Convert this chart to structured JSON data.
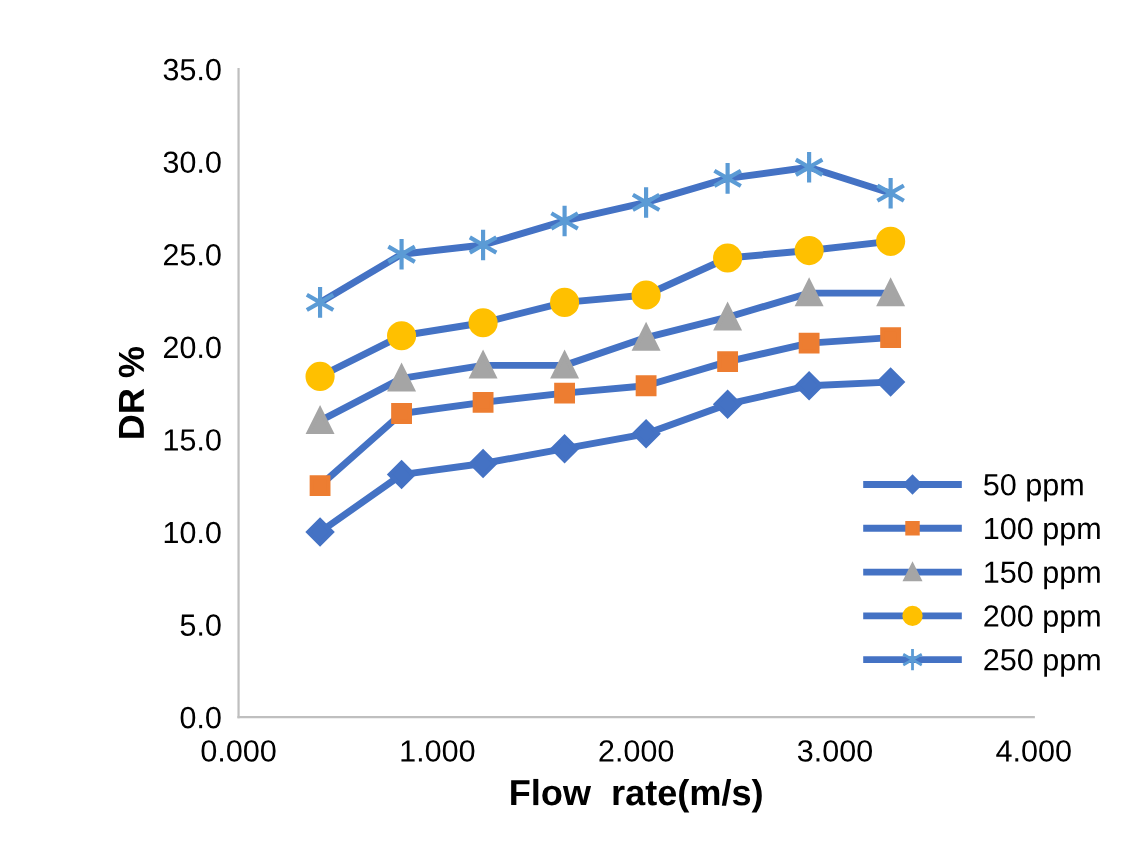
{
  "chart_data": {
    "type": "line",
    "xlabel": "Flow  rate(m/s)",
    "ylabel": "DR %",
    "x": [
      0.41,
      0.82,
      1.23,
      1.64,
      2.05,
      2.46,
      2.87,
      3.28
    ],
    "xlim": [
      0,
      4
    ],
    "xticks": [
      {
        "value": 0,
        "label": "0.000"
      },
      {
        "value": 1,
        "label": "1.000"
      },
      {
        "value": 2,
        "label": "2.000"
      },
      {
        "value": 3,
        "label": "3.000"
      },
      {
        "value": 4,
        "label": "4.000"
      }
    ],
    "ylim": [
      0,
      35
    ],
    "yticks": [
      {
        "value": 0,
        "label": "0.0"
      },
      {
        "value": 5,
        "label": "5.0"
      },
      {
        "value": 10,
        "label": "10.0"
      },
      {
        "value": 15,
        "label": "15.0"
      },
      {
        "value": 20,
        "label": "20.0"
      },
      {
        "value": 25,
        "label": "25.0"
      },
      {
        "value": 30,
        "label": "30.0"
      },
      {
        "value": 35,
        "label": "35.0"
      }
    ],
    "grid": false,
    "legend": "bottom right",
    "line_style": "solid",
    "series": [
      {
        "name": "50 ppm",
        "color": "#4472c4",
        "marker": "diamond",
        "colors": [
          "#4472c4",
          "#4472c4",
          "#4472c4",
          "#4472c4",
          "#4472c4",
          "#4472c4",
          "#4472c4",
          "#4472c4"
        ],
        "values": [
          10.0,
          13.1,
          13.7,
          14.5,
          15.3,
          16.9,
          17.9,
          18.1
        ]
      },
      {
        "name": "100 ppm",
        "color": "#4472c4",
        "marker": "square",
        "colors": [
          "#ed7d31",
          "#ed7d31",
          "#ed7d31",
          "#ed7d31",
          "#ed7d31",
          "#ed7d31",
          "#ed7d31",
          "#ed7d31"
        ],
        "values": [
          12.5,
          16.4,
          17.0,
          17.5,
          17.9,
          19.2,
          20.2,
          20.5
        ]
      },
      {
        "name": "150 ppm",
        "color": "#4472c4",
        "marker": "triangle",
        "colors": [
          "#a5a5a5",
          "#a5a5a5",
          "#a5a5a5",
          "#a5a5a5",
          "#a5a5a5",
          "#a5a5a5",
          "#a5a5a5",
          "#a5a5a5"
        ],
        "values": [
          16.0,
          18.3,
          19.0,
          19.0,
          20.5,
          21.6,
          22.9,
          22.9
        ]
      },
      {
        "name": "200 ppm",
        "color": "#4472c4",
        "marker": "circle",
        "colors": [
          "#ffc000",
          "#ffc000",
          "#ffc000",
          "#ffc000",
          "#ffc000",
          "#ffc000",
          "#ffc000",
          "#ffc000"
        ],
        "values": [
          18.4,
          20.6,
          21.3,
          22.4,
          22.8,
          24.8,
          25.2,
          25.7
        ]
      },
      {
        "name": "250 ppm",
        "color": "#4472c4",
        "marker": "cross",
        "colors": [
          "#5b9bd5",
          "#5b9bd5",
          "#5b9bd5",
          "#5b9bd5",
          "#5b9bd5",
          "#5b9bd5",
          "#5b9bd5",
          "#5b9bd5"
        ],
        "values": [
          22.4,
          25.0,
          25.5,
          26.8,
          27.8,
          29.1,
          29.7,
          28.3
        ]
      }
    ]
  }
}
